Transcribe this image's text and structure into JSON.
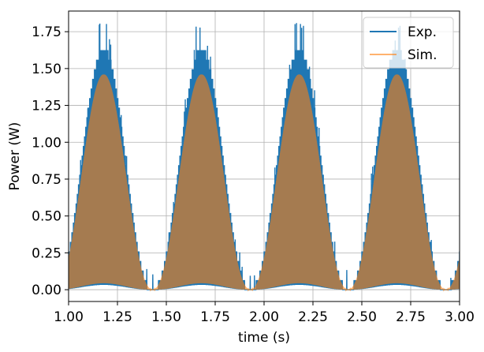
{
  "chart_data": {
    "type": "line",
    "xlabel": "time (s)",
    "ylabel": "Power (W)",
    "xlim": [
      1.0,
      3.0
    ],
    "ylim": [
      -0.08,
      1.89
    ],
    "xticks": [
      1.0,
      1.25,
      1.5,
      1.75,
      2.0,
      2.25,
      2.5,
      2.75,
      3.0
    ],
    "xtick_labels": [
      "1.00",
      "1.25",
      "1.50",
      "1.75",
      "2.00",
      "2.25",
      "2.50",
      "2.75",
      "3.00"
    ],
    "yticks": [
      0.0,
      0.25,
      0.5,
      0.75,
      1.0,
      1.25,
      1.5,
      1.75
    ],
    "ytick_labels": [
      "0.00",
      "0.25",
      "0.50",
      "0.75",
      "1.00",
      "1.25",
      "1.50",
      "1.75"
    ],
    "grid": true,
    "legend_position": "top-right",
    "period_s": 0.5,
    "series": [
      {
        "name": "Exp.",
        "color": "#1f77b4",
        "style": "dense oscillating signal filling area from 0 up to a stepped envelope",
        "peak_times": [
          1.18,
          1.68,
          2.18,
          2.68
        ],
        "envelope_peak": 1.63,
        "spike_max": 1.81,
        "trough_times": [
          1.43,
          1.93,
          2.43,
          2.93
        ],
        "trough_value": 0.0
      },
      {
        "name": "Sim.",
        "color": "#ff7f0e",
        "style": "dense oscillating signal filling area from 0 up to a smooth envelope",
        "peak_times": [
          1.18,
          1.68,
          2.18,
          2.68
        ],
        "envelope_peak": 1.46,
        "trough_times": [
          1.43,
          1.93,
          2.43,
          2.93
        ],
        "trough_value": 0.0
      }
    ]
  }
}
